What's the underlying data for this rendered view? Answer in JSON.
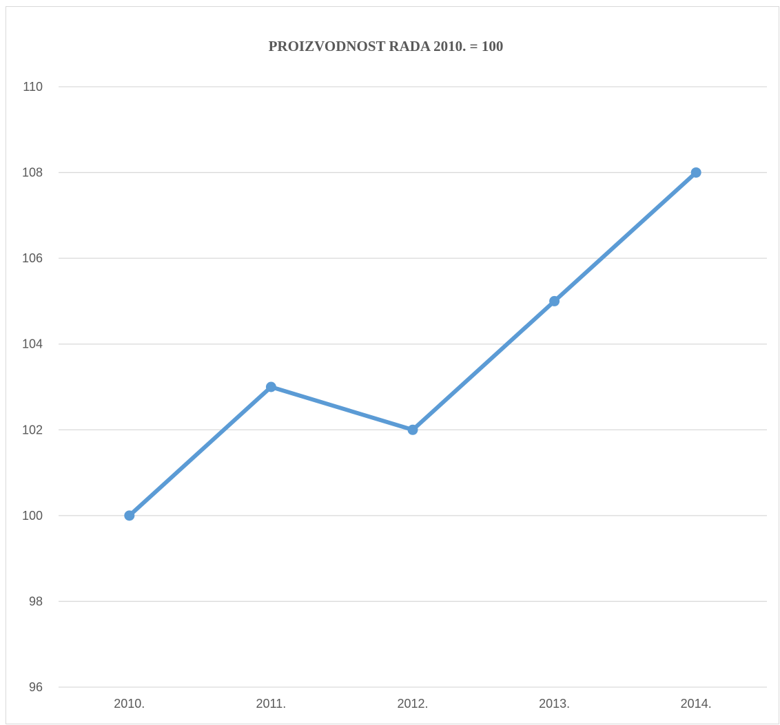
{
  "chart_data": {
    "type": "line",
    "title": "PROIZVODNOST RADA 2010. = 100",
    "xlabel": "",
    "ylabel": "",
    "categories": [
      "2010.",
      "2011.",
      "2012.",
      "2013.",
      "2014."
    ],
    "series": [
      {
        "values": [
          100,
          103,
          102,
          105,
          108
        ],
        "color": "#5b9bd5"
      }
    ],
    "ylim": [
      96,
      110
    ],
    "yticks": [
      96,
      98,
      100,
      102,
      104,
      106,
      108,
      110
    ],
    "grid": true,
    "legend": "none"
  }
}
